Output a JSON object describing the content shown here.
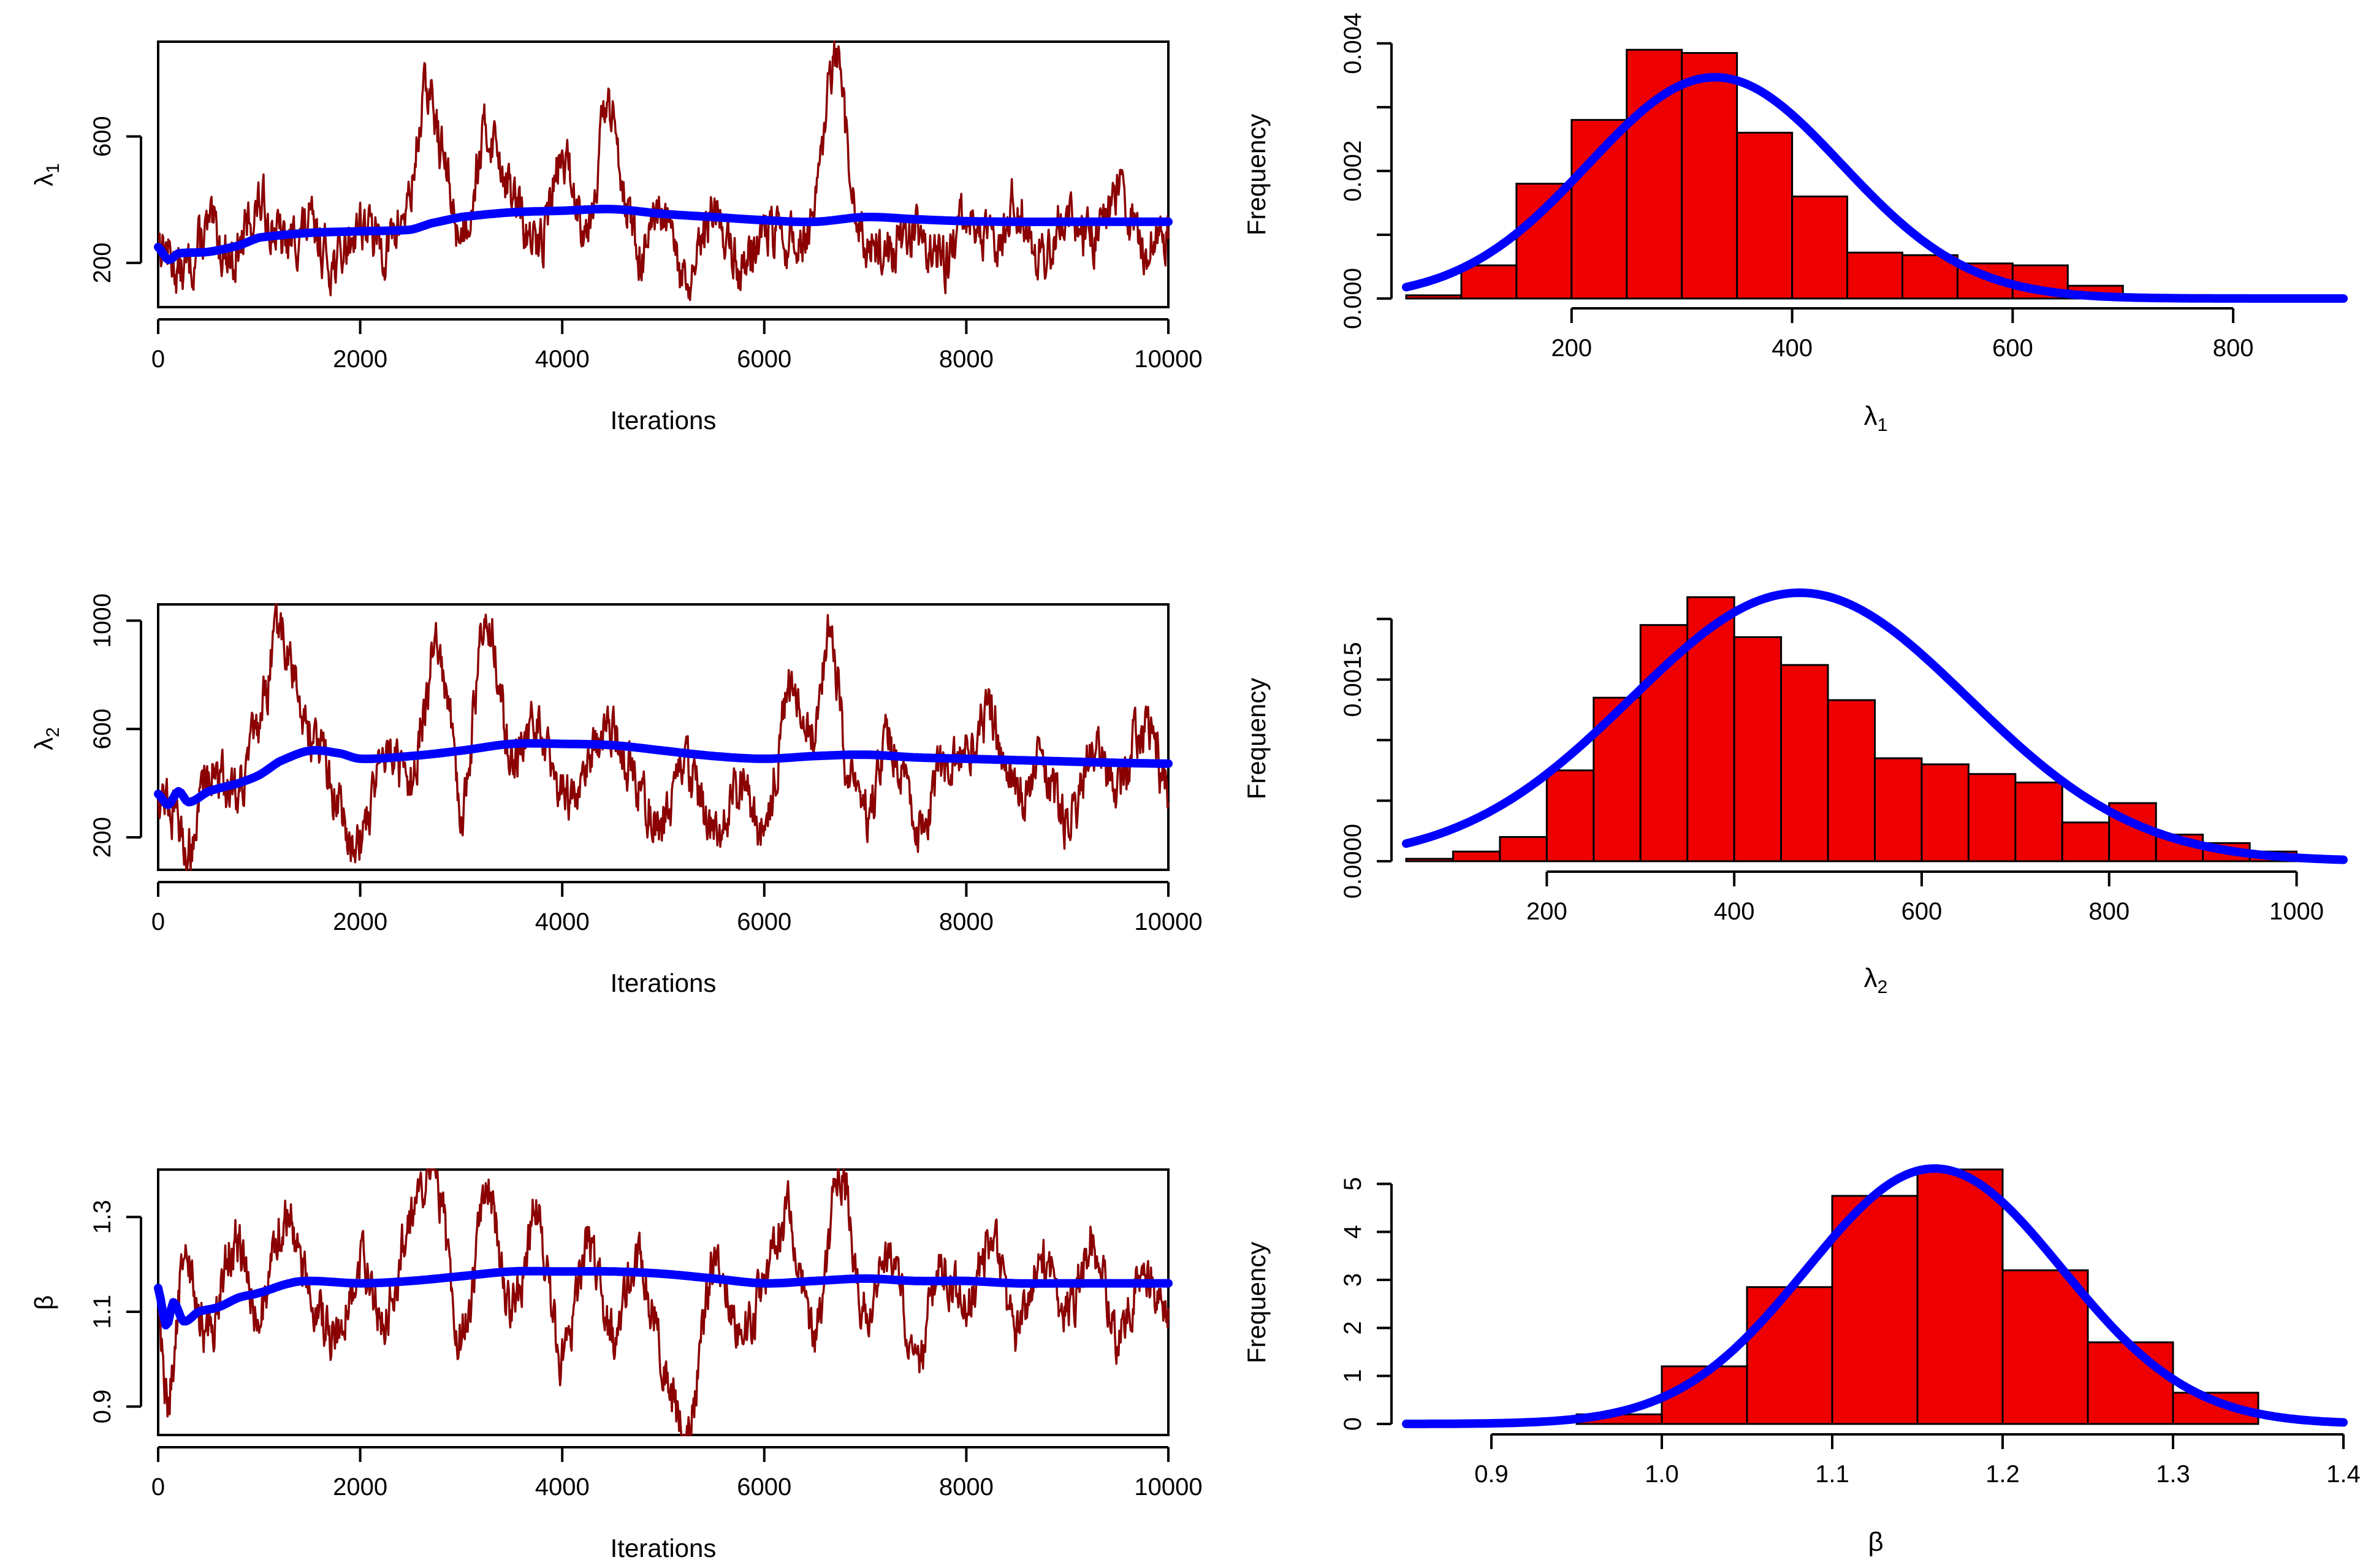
{
  "colors": {
    "trace": "#8b0000",
    "running_mean": "#0000ff",
    "histogram_fill": "#ee0000",
    "axis": "#000000"
  },
  "chart_data": [
    {
      "id": "trace-lambda1",
      "type": "line",
      "title": "",
      "xlabel": "Iterations",
      "ylabel": "λ",
      "ylabel_sub": "1",
      "xlim": [
        0,
        10000
      ],
      "ylim": [
        60,
        900
      ],
      "xticks": [
        0,
        2000,
        4000,
        6000,
        8000,
        10000
      ],
      "xtick_labels": [
        "0",
        "2000",
        "4000",
        "6000",
        "8000",
        "10000"
      ],
      "yticks": [
        200,
        600
      ],
      "ytick_labels": [
        "200",
        "600"
      ],
      "grid": false,
      "series": [
        {
          "role": "trace",
          "x": [
            0,
            250,
            500,
            750,
            1000,
            1250,
            1500,
            1750,
            2000,
            2250,
            2500,
            2650,
            2800,
            3000,
            3250,
            3500,
            3750,
            4000,
            4250,
            4450,
            4750,
            5000,
            5250,
            5500,
            5750,
            6000,
            6250,
            6500,
            6700,
            6900,
            7250,
            7500,
            7750,
            8000,
            8250,
            8500,
            8750,
            9000,
            9250,
            9500,
            9750,
            10000
          ],
          "y": [
            280,
            170,
            300,
            220,
            380,
            260,
            310,
            200,
            330,
            250,
            420,
            740,
            560,
            300,
            610,
            420,
            250,
            520,
            330,
            680,
            240,
            330,
            120,
            360,
            190,
            300,
            260,
            350,
            830,
            350,
            240,
            310,
            200,
            330,
            260,
            390,
            220,
            360,
            280,
            430,
            250,
            320
          ]
        },
        {
          "role": "running-mean",
          "x": [
            0,
            100,
            200,
            500,
            800,
            1000,
            1500,
            2000,
            2500,
            2700,
            3000,
            3500,
            4000,
            4500,
            5000,
            5500,
            6000,
            6500,
            7000,
            7500,
            8000,
            8500,
            9000,
            9500,
            10000
          ],
          "y": [
            250,
            210,
            230,
            235,
            255,
            280,
            295,
            300,
            305,
            325,
            345,
            360,
            365,
            370,
            355,
            345,
            335,
            330,
            345,
            338,
            332,
            330,
            330,
            330,
            330
          ]
        }
      ]
    },
    {
      "id": "hist-lambda1",
      "type": "bar",
      "title": "",
      "xlabel": "λ",
      "xlabel_sub": "1",
      "ylabel": "Frequency",
      "xlim": [
        50,
        900
      ],
      "ylim": [
        0,
        0.0042
      ],
      "xticks": [
        200,
        400,
        600,
        800
      ],
      "xtick_labels": [
        "200",
        "400",
        "600",
        "800"
      ],
      "yticks": [
        0,
        0.001,
        0.002,
        0.003,
        0.004
      ],
      "ytick_labels": [
        "0.000",
        "",
        "0.002",
        "",
        "0.004"
      ],
      "grid": false,
      "bin_width": 50,
      "bin_starts": [
        50,
        100,
        150,
        200,
        250,
        300,
        350,
        400,
        450,
        500,
        550,
        600,
        650,
        700,
        750,
        800,
        850
      ],
      "values": [
        5e-05,
        0.00052,
        0.0018,
        0.0028,
        0.0039,
        0.00385,
        0.0026,
        0.0016,
        0.00072,
        0.00068,
        0.00055,
        0.00052,
        0.0002,
        5e-05,
        4e-05,
        3e-05,
        1e-05
      ],
      "density": {
        "kind": "normal",
        "mean": 330,
        "sd": 115,
        "x_range": [
          50,
          900
        ]
      }
    },
    {
      "id": "trace-lambda2",
      "type": "line",
      "title": "",
      "xlabel": "Iterations",
      "ylabel": "λ",
      "ylabel_sub": "2",
      "xlim": [
        0,
        10000
      ],
      "ylim": [
        80,
        1060
      ],
      "xticks": [
        0,
        2000,
        4000,
        6000,
        8000,
        10000
      ],
      "xtick_labels": [
        "0",
        "2000",
        "4000",
        "6000",
        "8000",
        "10000"
      ],
      "yticks": [
        200,
        600,
        1000
      ],
      "ytick_labels": [
        "200",
        "600",
        "1000"
      ],
      "grid": false,
      "series": [
        {
          "role": "trace",
          "x": [
            0,
            150,
            300,
            500,
            750,
            1000,
            1200,
            1400,
            1600,
            1800,
            2000,
            2250,
            2500,
            2750,
            2900,
            3000,
            3250,
            3500,
            3750,
            4000,
            4250,
            4500,
            4750,
            5000,
            5250,
            5500,
            5750,
            6000,
            6250,
            6500,
            6650,
            6800,
            7000,
            7250,
            7500,
            7750,
            8000,
            8250,
            8500,
            8750,
            9000,
            9250,
            9500,
            9750,
            10000
          ],
          "y": [
            380,
            300,
            160,
            450,
            380,
            600,
            960,
            700,
            520,
            300,
            200,
            550,
            400,
            900,
            600,
            300,
            1000,
            480,
            650,
            350,
            500,
            600,
            380,
            250,
            450,
            200,
            380,
            250,
            720,
            580,
            980,
            500,
            300,
            550,
            250,
            450,
            500,
            650,
            350,
            480,
            250,
            500,
            380,
            600,
            380
          ]
        },
        {
          "role": "running-mean",
          "x": [
            0,
            100,
            200,
            300,
            500,
            800,
            1000,
            1200,
            1500,
            1800,
            2000,
            2500,
            3000,
            3500,
            4000,
            4500,
            5000,
            5500,
            6000,
            6500,
            7000,
            7500,
            8000,
            8500,
            9000,
            9500,
            10000
          ],
          "y": [
            360,
            320,
            370,
            330,
            370,
            400,
            430,
            480,
            520,
            510,
            490,
            500,
            520,
            545,
            545,
            540,
            520,
            500,
            490,
            500,
            505,
            495,
            490,
            485,
            480,
            475,
            472
          ]
        }
      ]
    },
    {
      "id": "hist-lambda2",
      "type": "bar",
      "title": "",
      "xlabel": "λ",
      "xlabel_sub": "2",
      "ylabel": "Frequency",
      "xlim": [
        50,
        1050
      ],
      "ylim": [
        0,
        0.0021
      ],
      "xticks": [
        200,
        400,
        600,
        800,
        1000
      ],
      "xtick_labels": [
        "200",
        "400",
        "600",
        "800",
        "1000"
      ],
      "yticks": [
        0,
        0.0005,
        0.001,
        0.0015,
        0.002
      ],
      "ytick_labels": [
        "0.0000",
        "",
        "",
        "0.0015",
        ""
      ],
      "grid": false,
      "bin_width": 50,
      "bin_starts": [
        50,
        100,
        150,
        200,
        250,
        300,
        350,
        400,
        450,
        500,
        550,
        600,
        650,
        700,
        750,
        800,
        850,
        900,
        950,
        1000
      ],
      "values": [
        2e-05,
        8e-05,
        0.0002,
        0.00075,
        0.00135,
        0.00195,
        0.00218,
        0.00185,
        0.00162,
        0.00133,
        0.00085,
        0.0008,
        0.00072,
        0.00065,
        0.00032,
        0.00048,
        0.00022,
        0.00015,
        8e-05,
        2e-05
      ],
      "density": {
        "kind": "normal",
        "mean": 470,
        "sd": 180,
        "x_range": [
          50,
          1050
        ]
      }
    },
    {
      "id": "trace-beta",
      "type": "line",
      "title": "",
      "xlabel": "Iterations",
      "ylabel": "β",
      "ylabel_sub": "",
      "xlim": [
        0,
        10000
      ],
      "ylim": [
        0.84,
        1.4
      ],
      "xticks": [
        0,
        2000,
        4000,
        6000,
        8000,
        10000
      ],
      "xtick_labels": [
        "0",
        "2000",
        "4000",
        "6000",
        "8000",
        "10000"
      ],
      "yticks": [
        0.9,
        1.1,
        1.3
      ],
      "ytick_labels": [
        "0.9",
        "1.1",
        "1.3"
      ],
      "grid": false,
      "series": [
        {
          "role": "trace",
          "x": [
            0,
            100,
            250,
            500,
            750,
            1000,
            1250,
            1500,
            1750,
            2000,
            2250,
            2500,
            2750,
            3000,
            3250,
            3500,
            3750,
            4000,
            4250,
            4500,
            4750,
            5000,
            5250,
            5500,
            5750,
            6000,
            6250,
            6500,
            6750,
            7000,
            7250,
            7500,
            7750,
            8000,
            8250,
            8500,
            8750,
            9000,
            9250,
            9500,
            9750,
            10000
          ],
          "y": [
            1.1,
            0.92,
            1.2,
            1.05,
            1.25,
            1.1,
            1.3,
            1.15,
            1.05,
            1.2,
            1.1,
            1.3,
            1.38,
            1.05,
            1.35,
            1.1,
            1.3,
            1.0,
            1.25,
            1.05,
            1.2,
            1.0,
            0.85,
            1.2,
            1.05,
            1.15,
            1.3,
            1.05,
            1.39,
            1.1,
            1.25,
            1.0,
            1.2,
            1.1,
            1.25,
            1.05,
            1.2,
            1.1,
            1.25,
            1.05,
            1.2,
            1.1
          ]
        },
        {
          "role": "running-mean",
          "x": [
            0,
            80,
            150,
            250,
            400,
            600,
            800,
            1000,
            1300,
            1500,
            2000,
            2500,
            3000,
            3500,
            4000,
            4500,
            5000,
            5500,
            6000,
            6500,
            7000,
            7500,
            8000,
            8500,
            9000,
            9500,
            10000
          ],
          "y": [
            1.15,
            1.07,
            1.12,
            1.08,
            1.1,
            1.11,
            1.13,
            1.14,
            1.16,
            1.165,
            1.16,
            1.165,
            1.175,
            1.185,
            1.185,
            1.185,
            1.18,
            1.17,
            1.16,
            1.165,
            1.17,
            1.165,
            1.165,
            1.16,
            1.16,
            1.16,
            1.16
          ]
        }
      ]
    },
    {
      "id": "hist-beta",
      "type": "bar",
      "title": "",
      "xlabel": "β",
      "xlabel_sub": "",
      "ylabel": "Frequency",
      "xlim": [
        0.85,
        1.4
      ],
      "ylim": [
        0,
        5.4
      ],
      "xticks": [
        0.9,
        1.0,
        1.1,
        1.2,
        1.3,
        1.4
      ],
      "xtick_labels": [
        "0.9",
        "1.0",
        "1.1",
        "1.2",
        "1.3",
        "1.4"
      ],
      "yticks": [
        0,
        1,
        2,
        3,
        4,
        5
      ],
      "ytick_labels": [
        "0",
        "1",
        "2",
        "3",
        "4",
        "5"
      ],
      "grid": false,
      "bin_width": 0.05,
      "bin_starts": [
        0.95,
        1.0,
        1.05,
        1.1,
        1.15,
        1.2,
        1.25,
        1.3
      ],
      "values": [
        0.2,
        1.2,
        2.85,
        4.75,
        5.3,
        3.2,
        1.7,
        0.65
      ],
      "density": {
        "kind": "normal",
        "mean": 1.16,
        "sd": 0.075,
        "x_range": [
          0.85,
          1.4
        ]
      }
    }
  ]
}
